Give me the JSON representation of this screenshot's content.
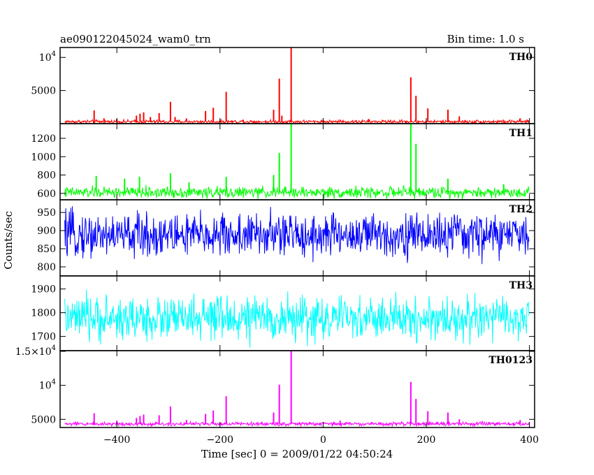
{
  "chart_data": {
    "type": "line",
    "title": "ae090122045024_wam0_trn",
    "bin_time_label": "Bin time: 1.0 s",
    "xlabel": "Time [sec] 0 = 2009/01/22 04:50:24",
    "ylabel": "Counts/sec",
    "xlim": [
      -510,
      410
    ],
    "x_ticks": [
      -400,
      -200,
      0,
      200,
      400
    ],
    "x_tick_labels": [
      "−400",
      "−200",
      "0",
      "200",
      "400"
    ],
    "series": [
      {
        "name": "TH0",
        "color": "#ff0000",
        "ylim": [
          0,
          11500
        ],
        "y_ticks": [
          5000,
          10000
        ],
        "y_tick_labels": [
          "5000",
          "10^4"
        ],
        "baseline": 300,
        "noise": 130,
        "points": [
          {
            "x": -444,
            "y": 2000
          },
          {
            "x": -425,
            "y": 800
          },
          {
            "x": -400,
            "y": 700
          },
          {
            "x": -362,
            "y": 1200
          },
          {
            "x": -355,
            "y": 1500
          },
          {
            "x": -348,
            "y": 1700
          },
          {
            "x": -335,
            "y": 1000
          },
          {
            "x": -318,
            "y": 1600
          },
          {
            "x": -296,
            "y": 3300
          },
          {
            "x": -287,
            "y": 1000
          },
          {
            "x": -265,
            "y": 800
          },
          {
            "x": -228,
            "y": 1900
          },
          {
            "x": -213,
            "y": 2400
          },
          {
            "x": -188,
            "y": 4800
          },
          {
            "x": -155,
            "y": 600
          },
          {
            "x": -96,
            "y": 2100
          },
          {
            "x": -85,
            "y": 6800
          },
          {
            "x": -80,
            "y": 1200
          },
          {
            "x": -62,
            "y": 11500
          },
          {
            "x": 33,
            "y": 600
          },
          {
            "x": 88,
            "y": 700
          },
          {
            "x": 170,
            "y": 7000
          },
          {
            "x": 180,
            "y": 4200
          },
          {
            "x": 203,
            "y": 2300
          },
          {
            "x": 242,
            "y": 2100
          },
          {
            "x": 264,
            "y": 1100
          },
          {
            "x": 382,
            "y": 800
          }
        ]
      },
      {
        "name": "TH1",
        "color": "#00ff00",
        "ylim": [
          530,
          1360
        ],
        "y_ticks": [
          600,
          800,
          1000,
          1200
        ],
        "y_tick_labels": [
          "600",
          "800",
          "1000",
          "1200"
        ],
        "baseline": 610,
        "noise": 30,
        "points": [
          {
            "x": -440,
            "y": 790
          },
          {
            "x": -385,
            "y": 760
          },
          {
            "x": -356,
            "y": 780
          },
          {
            "x": -296,
            "y": 820
          },
          {
            "x": -260,
            "y": 720
          },
          {
            "x": -188,
            "y": 780
          },
          {
            "x": -96,
            "y": 800
          },
          {
            "x": -85,
            "y": 1040
          },
          {
            "x": -62,
            "y": 1360
          },
          {
            "x": 170,
            "y": 1360
          },
          {
            "x": 180,
            "y": 1140
          },
          {
            "x": 242,
            "y": 760
          },
          {
            "x": 350,
            "y": 700
          }
        ]
      },
      {
        "name": "TH2",
        "color": "#0000ff",
        "ylim": [
          775,
          985
        ],
        "y_ticks": [
          800,
          850,
          900,
          950
        ],
        "y_tick_labels": [
          "800",
          "850",
          "900",
          "950"
        ],
        "baseline": 888,
        "noise": 30,
        "points": []
      },
      {
        "name": "TH3",
        "color": "#00ffff",
        "ylim": [
          1640,
          1955
        ],
        "y_ticks": [
          1700,
          1800,
          1900
        ],
        "y_tick_labels": [
          "1700",
          "1800",
          "1900"
        ],
        "baseline": 1775,
        "noise": 45,
        "points": []
      },
      {
        "name": "TH0123",
        "color": "#ff00ff",
        "ylim": [
          3800,
          15100
        ],
        "y_ticks": [
          5000,
          10000,
          15000
        ],
        "y_tick_labels": [
          "5000",
          "10^4",
          "1.5×10^4"
        ],
        "baseline": 4330,
        "noise": 140,
        "points": [
          {
            "x": -444,
            "y": 5900
          },
          {
            "x": -400,
            "y": 4800
          },
          {
            "x": -362,
            "y": 5200
          },
          {
            "x": -355,
            "y": 5500
          },
          {
            "x": -348,
            "y": 5700
          },
          {
            "x": -318,
            "y": 5600
          },
          {
            "x": -296,
            "y": 6900
          },
          {
            "x": -265,
            "y": 4900
          },
          {
            "x": -228,
            "y": 5800
          },
          {
            "x": -213,
            "y": 6300
          },
          {
            "x": -188,
            "y": 8400
          },
          {
            "x": -96,
            "y": 6000
          },
          {
            "x": -85,
            "y": 10100
          },
          {
            "x": -62,
            "y": 15100
          },
          {
            "x": 33,
            "y": 4800
          },
          {
            "x": 170,
            "y": 10500
          },
          {
            "x": 180,
            "y": 8000
          },
          {
            "x": 203,
            "y": 6200
          },
          {
            "x": 242,
            "y": 6000
          },
          {
            "x": 264,
            "y": 5000
          },
          {
            "x": 382,
            "y": 4900
          }
        ]
      }
    ]
  }
}
